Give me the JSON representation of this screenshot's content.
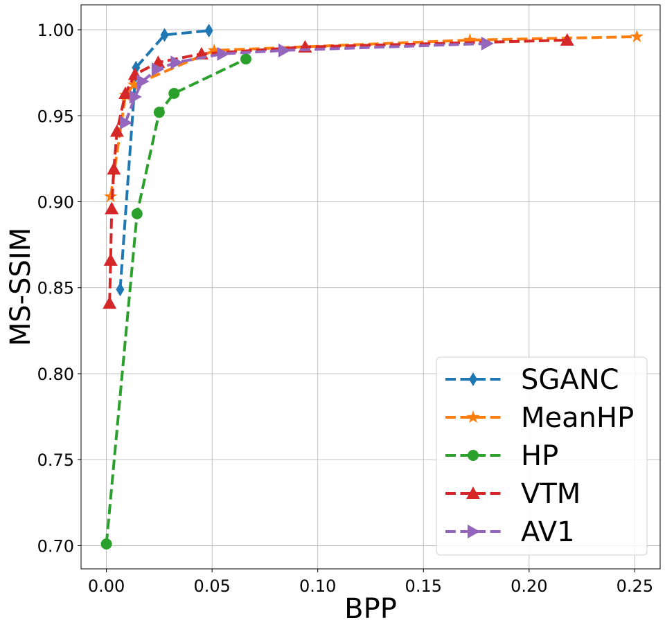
{
  "chart_data": {
    "type": "line",
    "xlabel": "BPP",
    "ylabel": "MS-SSIM",
    "xlim": [
      -0.012,
      0.262
    ],
    "ylim": [
      0.6865,
      1.0145
    ],
    "xticks": [
      0.0,
      0.05,
      0.1,
      0.15,
      0.2,
      0.25
    ],
    "xtick_labels": [
      "0.00",
      "0.05",
      "0.10",
      "0.15",
      "0.20",
      "0.25"
    ],
    "yticks": [
      0.7,
      0.75,
      0.8,
      0.85,
      0.9,
      0.95,
      1.0
    ],
    "ytick_labels": [
      "0.70",
      "0.75",
      "0.80",
      "0.85",
      "0.90",
      "0.95",
      "1.00"
    ],
    "grid": true,
    "legend_position": "bottom-right",
    "series": [
      {
        "name": "SGANC",
        "color": "#1f77b4",
        "marker": "thin_diamond",
        "x": [
          0.0065,
          0.014,
          0.0275,
          0.0485
        ],
        "y": [
          0.849,
          0.978,
          0.997,
          0.9995
        ]
      },
      {
        "name": "MeanHP",
        "color": "#ff7f0e",
        "marker": "star",
        "x": [
          0.002,
          0.009,
          0.013,
          0.051,
          0.172,
          0.251
        ],
        "y": [
          0.903,
          0.962,
          0.968,
          0.988,
          0.994,
          0.996
        ]
      },
      {
        "name": "HP",
        "color": "#2ca02c",
        "marker": "circle",
        "x": [
          0.0,
          0.0145,
          0.025,
          0.032,
          0.066
        ],
        "y": [
          0.701,
          0.893,
          0.952,
          0.963,
          0.983
        ]
      },
      {
        "name": "VTM",
        "color": "#d62728",
        "marker": "triangle_up",
        "x": [
          0.0015,
          0.002,
          0.0025,
          0.0035,
          0.005,
          0.009,
          0.0135,
          0.0245,
          0.045,
          0.094,
          0.218
        ],
        "y": [
          0.841,
          0.866,
          0.896,
          0.919,
          0.941,
          0.963,
          0.974,
          0.981,
          0.986,
          0.99,
          0.994
        ]
      },
      {
        "name": "AV1",
        "color": "#9467bd",
        "marker": "triangle_right",
        "x": [
          0.009,
          0.0135,
          0.017,
          0.024,
          0.033,
          0.055,
          0.084,
          0.18
        ],
        "y": [
          0.946,
          0.961,
          0.97,
          0.977,
          0.981,
          0.986,
          0.988,
          0.992
        ]
      }
    ]
  }
}
